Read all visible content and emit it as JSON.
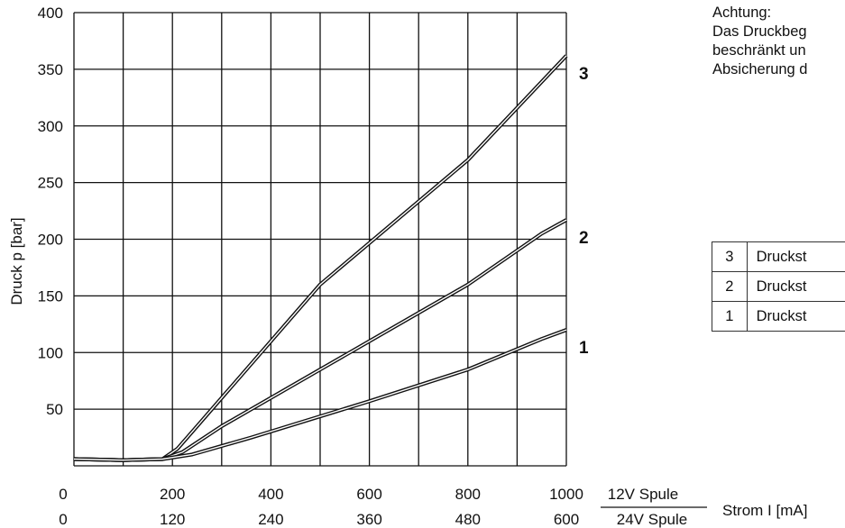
{
  "note": {
    "lines": [
      "Achtung:",
      "Das Druckbeg",
      "beschränkt un",
      "Absicherung d"
    ]
  },
  "legend_rows": [
    {
      "num": "3",
      "text": "Druckst"
    },
    {
      "num": "2",
      "text": "Druckst"
    },
    {
      "num": "1",
      "text": "Druckst"
    }
  ],
  "chart_data": {
    "type": "line",
    "ylabel": "Druck p [bar]",
    "xlabel": "Strom I [mA]",
    "x_axis_primary_label": "12V Spule",
    "x_axis_secondary_label": "24V Spule",
    "xlim": [
      0,
      1000
    ],
    "ylim": [
      0,
      400
    ],
    "x_ticks_12v": [
      "0",
      "200",
      "400",
      "600",
      "800",
      "1000"
    ],
    "x_ticks_24v": [
      "0",
      "120",
      "240",
      "360",
      "480",
      "600"
    ],
    "y_ticks": [
      "50",
      "100",
      "150",
      "200",
      "250",
      "300",
      "350",
      "400"
    ],
    "grid": true,
    "series": [
      {
        "name": "3",
        "points": [
          [
            0,
            6
          ],
          [
            100,
            5
          ],
          [
            180,
            6
          ],
          [
            210,
            15
          ],
          [
            260,
            40
          ],
          [
            500,
            160
          ],
          [
            800,
            270
          ],
          [
            1000,
            362
          ]
        ]
      },
      {
        "name": "2",
        "points": [
          [
            0,
            6
          ],
          [
            100,
            5
          ],
          [
            180,
            6
          ],
          [
            220,
            12
          ],
          [
            300,
            35
          ],
          [
            500,
            85
          ],
          [
            800,
            160
          ],
          [
            950,
            205
          ],
          [
            1000,
            217
          ]
        ]
      },
      {
        "name": "1",
        "points": [
          [
            0,
            6
          ],
          [
            100,
            5
          ],
          [
            180,
            6
          ],
          [
            240,
            10
          ],
          [
            360,
            25
          ],
          [
            600,
            57
          ],
          [
            800,
            85
          ],
          [
            950,
            112
          ],
          [
            1000,
            120
          ]
        ]
      }
    ]
  }
}
